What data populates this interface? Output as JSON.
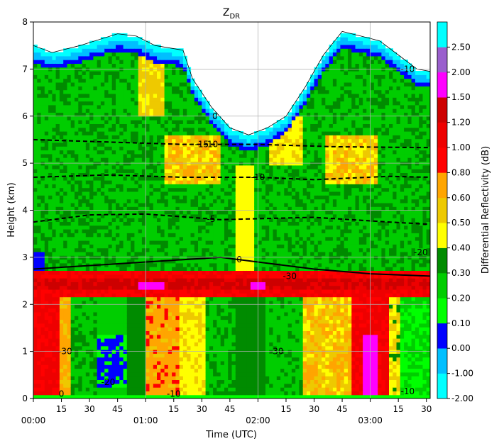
{
  "chart_data": {
    "type": "heatmap",
    "title": "Z",
    "title_subscript": "DR",
    "xlabel": "Time (UTC)",
    "ylabel": "Height (km)",
    "xlim_minutes": [
      0,
      212
    ],
    "ylim": [
      0,
      8
    ],
    "grid": true,
    "x_ticks": [
      {
        "minute": 0,
        "label": "00:00"
      },
      {
        "minute": 15,
        "label": "15"
      },
      {
        "minute": 30,
        "label": "30"
      },
      {
        "minute": 45,
        "label": "45"
      },
      {
        "minute": 60,
        "label": "01:00"
      },
      {
        "minute": 75,
        "label": "15"
      },
      {
        "minute": 90,
        "label": "30"
      },
      {
        "minute": 105,
        "label": "45"
      },
      {
        "minute": 120,
        "label": "02:00"
      },
      {
        "minute": 135,
        "label": "15"
      },
      {
        "minute": 150,
        "label": "30"
      },
      {
        "minute": 165,
        "label": "45"
      },
      {
        "minute": 180,
        "label": "03:00"
      },
      {
        "minute": 195,
        "label": "15"
      },
      {
        "minute": 210,
        "label": "30"
      }
    ],
    "y_ticks": [
      0,
      1,
      2,
      3,
      4,
      5,
      6,
      7,
      8
    ],
    "colorbar": {
      "label": "Differential Reflectivity (dB)",
      "levels": [
        {
          "label": "-2.00",
          "color": "#00ffff"
        },
        {
          "label": "-1.00",
          "color": "#00bfff"
        },
        {
          "label": "0.00",
          "color": "#0000ff"
        },
        {
          "label": "0.10",
          "color": "#00ff00"
        },
        {
          "label": "0.20",
          "color": "#00cd00"
        },
        {
          "label": "0.30",
          "color": "#008b00"
        },
        {
          "label": "0.40",
          "color": "#ffff00"
        },
        {
          "label": "0.50",
          "color": "#eec900"
        },
        {
          "label": "0.60",
          "color": "#ffa500"
        },
        {
          "label": "0.80",
          "color": "#ff0000"
        },
        {
          "label": "1.00",
          "color": "#ee0000"
        },
        {
          "label": "1.20",
          "color": "#cd0000"
        },
        {
          "label": "1.50",
          "color": "#ff00ff"
        },
        {
          "label": "2.00",
          "color": "#9a5fcd"
        },
        {
          "label": "2.50",
          "color": "#00ffff"
        }
      ]
    },
    "isotherms": [
      {
        "label": "0",
        "heights": [
          [
            0,
            2.75
          ],
          [
            60,
            2.9
          ],
          [
            100,
            3.0
          ],
          [
            120,
            2.9
          ],
          [
            150,
            2.75
          ],
          [
            180,
            2.65
          ],
          [
            212,
            2.6
          ]
        ]
      },
      {
        "label": "-5",
        "heights": [
          [
            0,
            3.75
          ],
          [
            30,
            3.9
          ],
          [
            60,
            3.92
          ],
          [
            100,
            3.8
          ],
          [
            150,
            3.85
          ],
          [
            190,
            3.75
          ],
          [
            212,
            3.7
          ]
        ]
      },
      {
        "label": "-10",
        "heights": [
          [
            0,
            4.7
          ],
          [
            40,
            4.75
          ],
          [
            80,
            4.7
          ],
          [
            120,
            4.7
          ],
          [
            150,
            4.65
          ],
          [
            190,
            4.72
          ],
          [
            212,
            4.7
          ]
        ]
      },
      {
        "label": "-15",
        "heights": [
          [
            0,
            5.5
          ],
          [
            40,
            5.45
          ],
          [
            80,
            5.4
          ],
          [
            120,
            5.4
          ],
          [
            160,
            5.35
          ],
          [
            212,
            5.33
          ]
        ]
      }
    ],
    "contour_labels": [
      "0",
      "-10",
      "-30",
      "0",
      "-10",
      "-20",
      "-30",
      "-30",
      "-20",
      "-10",
      "-10"
    ],
    "cloud_top_km": [
      [
        0,
        7.5
      ],
      [
        10,
        7.35
      ],
      [
        25,
        7.5
      ],
      [
        45,
        7.75
      ],
      [
        55,
        7.7
      ],
      [
        65,
        7.5
      ],
      [
        80,
        7.4
      ],
      [
        85,
        6.8
      ],
      [
        95,
        6.2
      ],
      [
        105,
        5.75
      ],
      [
        115,
        5.6
      ],
      [
        125,
        5.75
      ],
      [
        135,
        6.0
      ],
      [
        145,
        6.6
      ],
      [
        155,
        7.3
      ],
      [
        165,
        7.8
      ],
      [
        175,
        7.7
      ],
      [
        185,
        7.6
      ],
      [
        195,
        7.3
      ],
      [
        205,
        7.0
      ],
      [
        212,
        6.95
      ]
    ]
  }
}
